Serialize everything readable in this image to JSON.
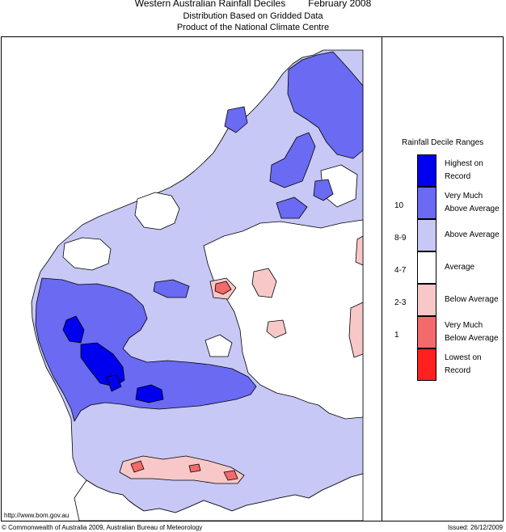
{
  "title": {
    "main": "Western Australian Rainfall Deciles",
    "period": "February 2008"
  },
  "subtitle": {
    "line1": "Distribution Based on Gridded Data",
    "line2": "Product of the National Climate Centre"
  },
  "legend": {
    "title": "Rainfall Decile Ranges",
    "items": [
      {
        "label": "Highest on Record",
        "range": "",
        "color": "#0000ee"
      },
      {
        "label": "Very Much Above Average",
        "range": "10",
        "color": "#6a6af2"
      },
      {
        "label": "Above Average",
        "range": "8-9",
        "color": "#c8c8f6"
      },
      {
        "label": "Average",
        "range": "4-7",
        "color": "#ffffff"
      },
      {
        "label": "Below Average",
        "range": "2-3",
        "color": "#f8c8c8"
      },
      {
        "label": "Very Much Below Average",
        "range": "1",
        "color": "#f26a6a"
      },
      {
        "label": "Lowest on Record",
        "range": "",
        "color": "#ff2020"
      }
    ]
  },
  "footer": {
    "url": "http://www.bom.gov.au",
    "copyright": "© Commonwealth of Australia 2009, Australian Bureau of Meteorology",
    "issued": "Issued: 26/12/2009"
  }
}
